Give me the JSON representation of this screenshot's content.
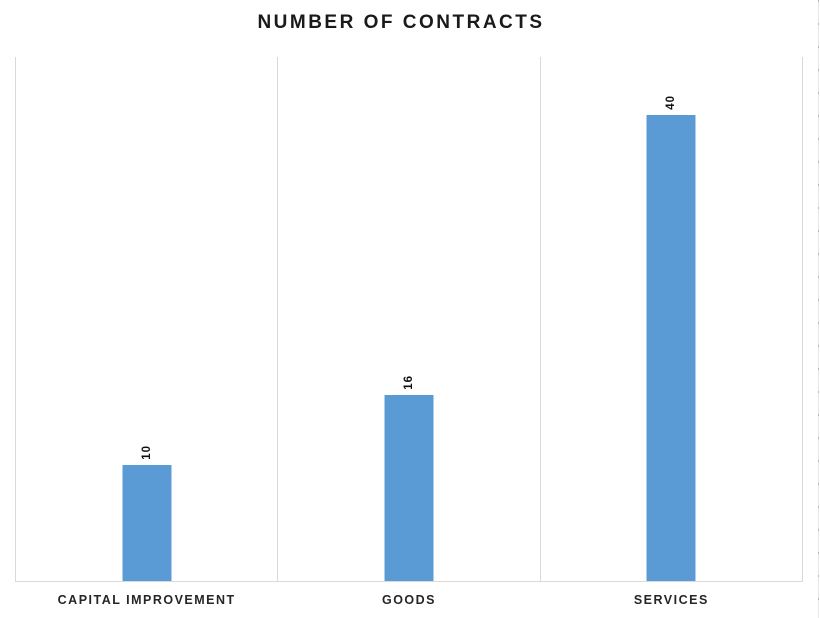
{
  "chart_data": {
    "type": "bar",
    "title": "NUMBER OF CONTRACTS",
    "categories": [
      "CAPITAL IMPROVEMENT",
      "GOODS",
      "SERVICES"
    ],
    "values": [
      10,
      16,
      40
    ],
    "data_labels": [
      "10",
      "16",
      "40"
    ],
    "xlabel": "",
    "ylabel": "",
    "ylim": [
      0,
      45
    ],
    "grid": "vertical category separators only",
    "legend": "none",
    "data_label_rotation": "rotated 90 degrees, reads bottom-to-top",
    "bar_color": "#5b9bd5"
  },
  "colors": {
    "bar": "#5b9bd5",
    "gridline": "#d9d9d9",
    "axis_line": "#d9d9d9",
    "title_text": "#1a1a1a",
    "category_text": "#262626",
    "data_label_text": "#111111",
    "background": "#ffffff"
  }
}
